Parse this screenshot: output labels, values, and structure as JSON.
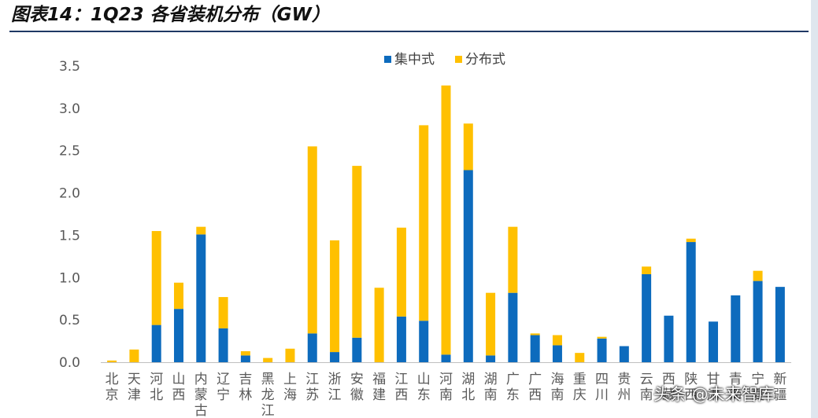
{
  "header": {
    "title": "图表14：1Q23 各省装机分布（GW）"
  },
  "watermark": "头条 @未来智库",
  "chart_data": {
    "type": "bar",
    "stacked": true,
    "title": "",
    "xlabel": "",
    "ylabel": "",
    "ylim": [
      0,
      3.5
    ],
    "ytick_labels": [
      "0.0",
      "0.5",
      "1.0",
      "1.5",
      "2.0",
      "2.5",
      "3.0",
      "3.5"
    ],
    "grid": false,
    "legend": "top-center",
    "categories": [
      "北京",
      "天津",
      "河北",
      "山西",
      "内蒙古",
      "辽宁",
      "吉林",
      "黑龙江",
      "上海",
      "江苏",
      "浙江",
      "安徽",
      "福建",
      "江西",
      "山东",
      "河南",
      "湖北",
      "湖南",
      "广东",
      "广西",
      "海南",
      "重庆",
      "四川",
      "贵州",
      "云南",
      "西藏",
      "陕西",
      "甘肃",
      "青海",
      "宁夏",
      "新疆"
    ],
    "series": [
      {
        "name": "集中式",
        "color": "#0d6bbd",
        "values": [
          0.0,
          0.0,
          0.44,
          0.63,
          1.51,
          0.4,
          0.08,
          0.0,
          0.0,
          0.34,
          0.12,
          0.29,
          0.0,
          0.54,
          0.49,
          0.09,
          2.27,
          0.08,
          0.82,
          0.32,
          0.2,
          0.0,
          0.28,
          0.19,
          1.04,
          0.55,
          1.42,
          0.48,
          0.79,
          0.96,
          0.89
        ]
      },
      {
        "name": "分布式",
        "color": "#ffc000",
        "values": [
          0.02,
          0.15,
          1.11,
          0.31,
          0.09,
          0.37,
          0.05,
          0.05,
          0.16,
          2.21,
          1.32,
          2.03,
          0.88,
          1.05,
          2.31,
          3.18,
          0.55,
          0.74,
          0.78,
          0.02,
          0.12,
          0.11,
          0.02,
          0.0,
          0.09,
          0.0,
          0.04,
          0.0,
          0.0,
          0.12,
          0.0
        ]
      }
    ]
  }
}
